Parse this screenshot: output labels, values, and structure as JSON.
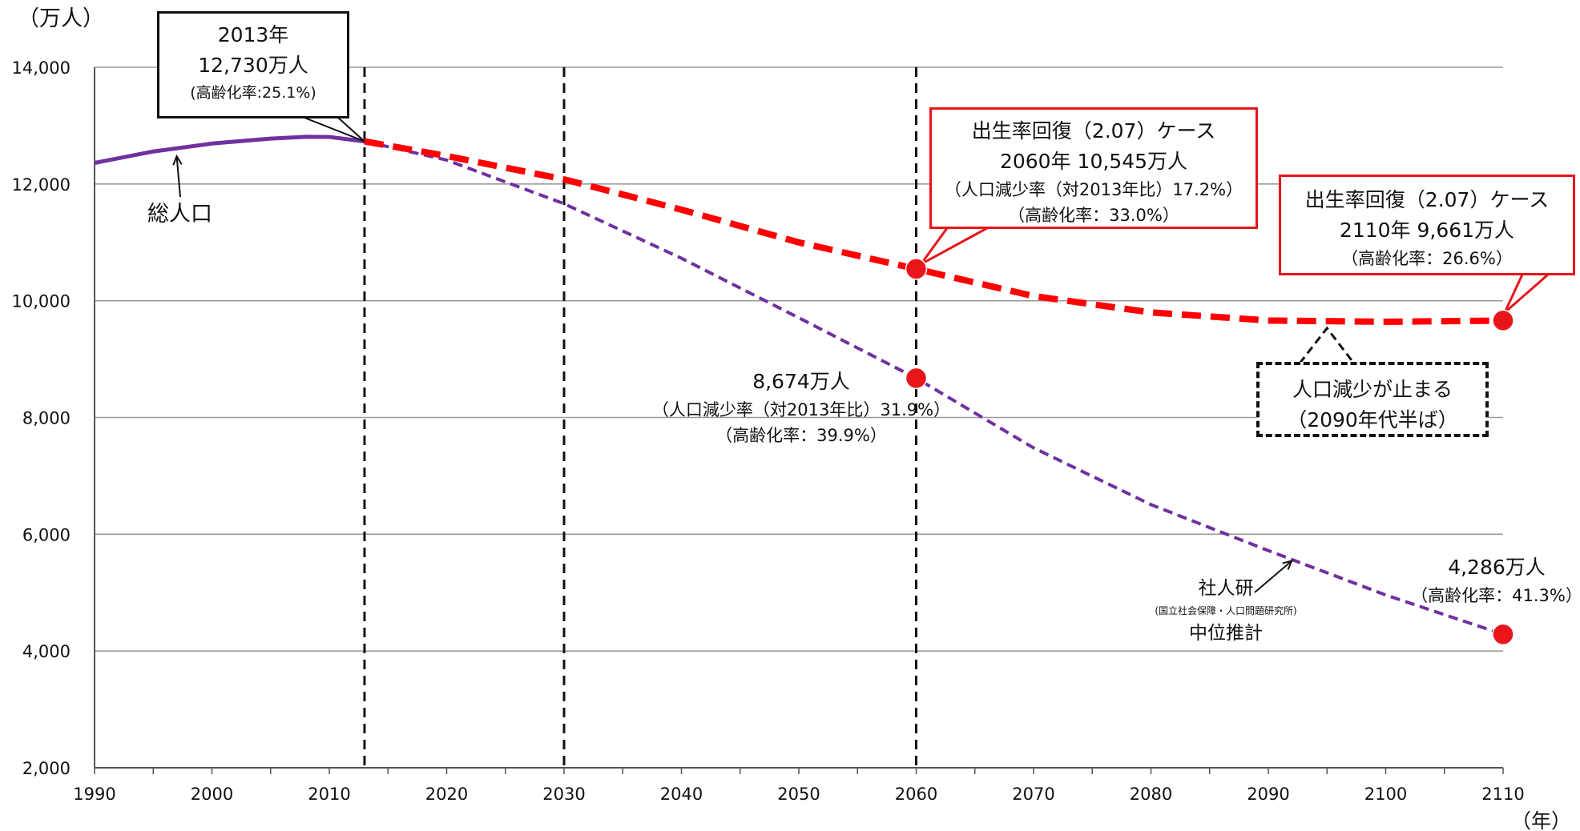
{
  "chart_data": {
    "type": "line",
    "y_unit_label": "（万人）",
    "x_unit_label": "（年）",
    "xlim": [
      1990,
      2110
    ],
    "ylim": [
      2000,
      14000
    ],
    "x_ticks": [
      "1990",
      "2000",
      "2010",
      "2020",
      "2030",
      "2040",
      "2050",
      "2060",
      "2070",
      "2080",
      "2090",
      "2100",
      "2110"
    ],
    "y_ticks": [
      "2,000",
      "4,000",
      "6,000",
      "8,000",
      "10,000",
      "12,000",
      "14,000"
    ],
    "grid": "horizontal",
    "vlines": [
      2013,
      2030,
      2060
    ],
    "series": [
      {
        "name": "総人口",
        "color": "#7030a0",
        "style": "solid",
        "x": [
          1990,
          1995,
          2000,
          2005,
          2008,
          2010,
          2013
        ],
        "y": [
          12361,
          12557,
          12693,
          12777,
          12808,
          12806,
          12730
        ]
      },
      {
        "name": "社人研（国立社会保障・人口問題研究所）中位推計",
        "color": "#7030a0",
        "style": "dashed",
        "x": [
          2013,
          2020,
          2030,
          2040,
          2050,
          2060,
          2070,
          2080,
          2090,
          2100,
          2110
        ],
        "y": [
          12730,
          12410,
          11662,
          10728,
          9708,
          8674,
          7480,
          6508,
          5720,
          4960,
          4286
        ]
      },
      {
        "name": "出生率回復(2.07)ケース",
        "color": "#ff0000",
        "style": "dashed",
        "x": [
          2013,
          2020,
          2030,
          2040,
          2050,
          2060,
          2070,
          2080,
          2090,
          2100,
          2110
        ],
        "y": [
          12730,
          12480,
          12080,
          11560,
          11000,
          10545,
          10080,
          9800,
          9661,
          9640,
          9661
        ]
      }
    ],
    "markers": [
      {
        "x": 2060,
        "y": 10545,
        "color": "#e8151b"
      },
      {
        "x": 2060,
        "y": 8674,
        "color": "#e8151b"
      },
      {
        "x": 2110,
        "y": 9661,
        "color": "#e8151b"
      },
      {
        "x": 2110,
        "y": 4286,
        "color": "#e8151b"
      }
    ],
    "annotations": {
      "box_2013": [
        "2013年",
        "12,730万人",
        "(高齢化率:25.1%)"
      ],
      "box_2060_recovery": [
        "出生率回復（2.07）ケース",
        "2060年  10,545万人",
        "（人口減少率（対2013年比）17.2%）",
        "（高齢化率：33.0%）"
      ],
      "box_2110_recovery": [
        "出生率回復（2.07）ケース",
        "2110年 9,661万人",
        "（高齢化率：26.6%）"
      ],
      "label_2060_base": [
        "8,674万人",
        "（人口減少率（対2013年比）31.9%）",
        "（高齢化率：39.9%）"
      ],
      "label_2110_base": [
        "4,286万人",
        "（高齢化率：41.3%）"
      ],
      "box_stop": [
        "人口減少が止まる",
        "（2090年代半ば）"
      ],
      "label_total": "総人口",
      "label_ipss": [
        "社人研",
        "(国立社会保障・人口問題研究所)",
        "中位推計"
      ]
    }
  }
}
